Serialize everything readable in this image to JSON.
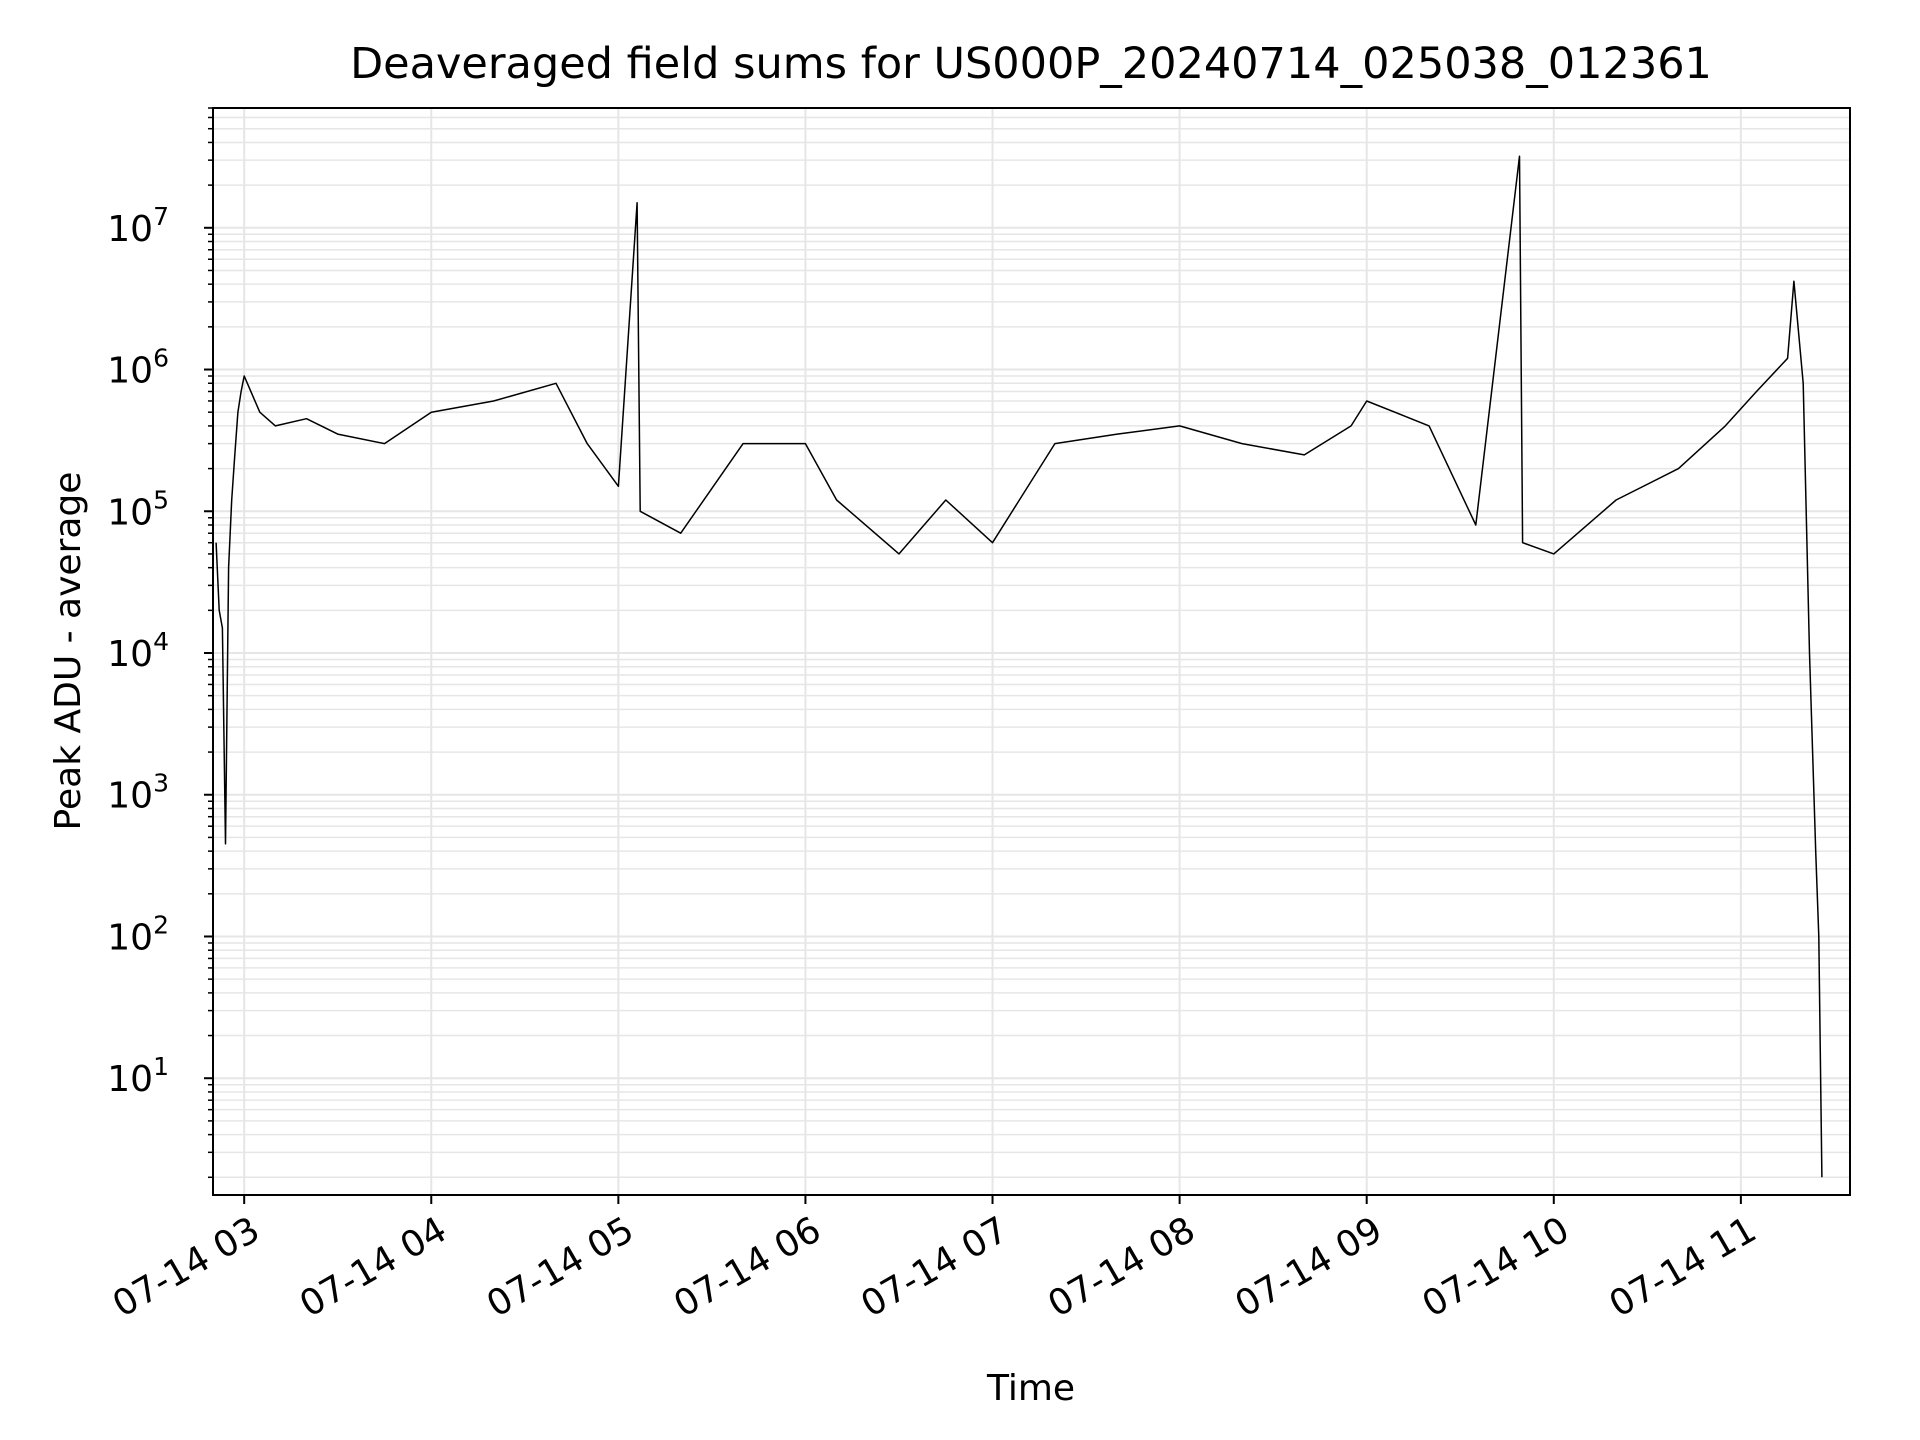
{
  "chart_data": {
    "type": "line",
    "title": "Deaveraged field sums for US000P_20240714_025038_012361",
    "xlabel": "Time",
    "ylabel": "Peak ADU - average",
    "x_scale": "time",
    "y_scale": "log",
    "xlim": [
      "07-14 02:50",
      "07-14 11:35"
    ],
    "ylim": [
      1.5,
      70000000
    ],
    "x_ticks": [
      "07-14 03",
      "07-14 04",
      "07-14 05",
      "07-14 06",
      "07-14 07",
      "07-14 08",
      "07-14 09",
      "07-14 10",
      "07-14 11"
    ],
    "y_ticks": [
      {
        "base": "10",
        "exp": "1",
        "value": 10
      },
      {
        "base": "10",
        "exp": "2",
        "value": 100
      },
      {
        "base": "10",
        "exp": "3",
        "value": 1000
      },
      {
        "base": "10",
        "exp": "4",
        "value": 10000
      },
      {
        "base": "10",
        "exp": "5",
        "value": 100000
      },
      {
        "base": "10",
        "exp": "6",
        "value": 1000000
      },
      {
        "base": "10",
        "exp": "7",
        "value": 10000000
      }
    ],
    "grid": true,
    "legend": "none",
    "line_color": "#000000",
    "grid_color": "#e6e6e6",
    "series": [
      {
        "values_note_unused": "",
        "points": [
          [
            "07-14 02:51",
            60000
          ],
          [
            "07-14 02:52",
            20000
          ],
          [
            "07-14 02:53",
            15000
          ],
          [
            "07-14 02:54",
            450
          ],
          [
            "07-14 02:55",
            40000
          ],
          [
            "07-14 02:56",
            120000
          ],
          [
            "07-14 02:57",
            250000
          ],
          [
            "07-14 02:58",
            500000
          ],
          [
            "07-14 02:59",
            700000
          ],
          [
            "07-14 03:00",
            900000
          ],
          [
            "07-14 03:05",
            500000
          ],
          [
            "07-14 03:10",
            400000
          ],
          [
            "07-14 03:20",
            450000
          ],
          [
            "07-14 03:30",
            350000
          ],
          [
            "07-14 03:45",
            300000
          ],
          [
            "07-14 04:00",
            500000
          ],
          [
            "07-14 04:20",
            600000
          ],
          [
            "07-14 04:40",
            800000
          ],
          [
            "07-14 04:50",
            300000
          ],
          [
            "07-14 05:00",
            150000
          ],
          [
            "07-14 05:06",
            15000000
          ],
          [
            "07-14 05:07",
            100000
          ],
          [
            "07-14 05:20",
            70000
          ],
          [
            "07-14 05:40",
            300000
          ],
          [
            "07-14 06:00",
            300000
          ],
          [
            "07-14 06:10",
            120000
          ],
          [
            "07-14 06:30",
            50000
          ],
          [
            "07-14 06:45",
            120000
          ],
          [
            "07-14 07:00",
            60000
          ],
          [
            "07-14 07:20",
            300000
          ],
          [
            "07-14 07:40",
            350000
          ],
          [
            "07-14 08:00",
            400000
          ],
          [
            "07-14 08:20",
            300000
          ],
          [
            "07-14 08:40",
            250000
          ],
          [
            "07-14 08:55",
            400000
          ],
          [
            "07-14 09:00",
            600000
          ],
          [
            "07-14 09:20",
            400000
          ],
          [
            "07-14 09:35",
            80000
          ],
          [
            "07-14 09:49",
            32000000
          ],
          [
            "07-14 09:50",
            60000
          ],
          [
            "07-14 10:00",
            50000
          ],
          [
            "07-14 10:20",
            120000
          ],
          [
            "07-14 10:40",
            200000
          ],
          [
            "07-14 10:55",
            400000
          ],
          [
            "07-14 11:05",
            700000
          ],
          [
            "07-14 11:15",
            1200000
          ],
          [
            "07-14 11:17",
            4200000
          ],
          [
            "07-14 11:20",
            800000
          ],
          [
            "07-14 11:22",
            10000
          ],
          [
            "07-14 11:24",
            400
          ],
          [
            "07-14 11:25",
            100
          ],
          [
            "07-14 11:26",
            2
          ]
        ]
      }
    ]
  }
}
